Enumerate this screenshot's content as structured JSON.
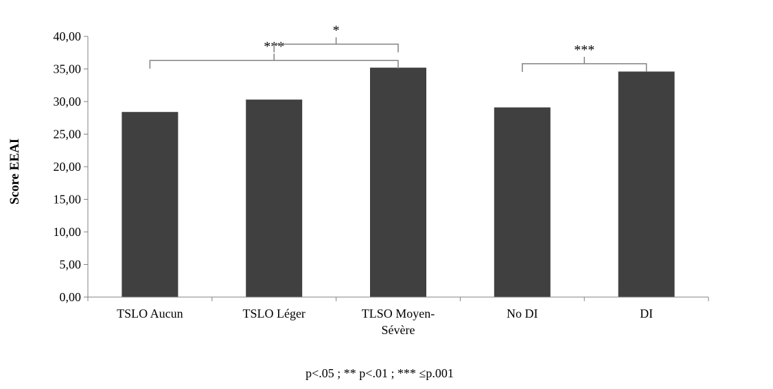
{
  "chart_data": {
    "type": "bar",
    "categories": [
      "TSLO Aucun",
      "TSLO Léger",
      "TLSO Moyen-Sévère",
      "No DI",
      "DI"
    ],
    "category_lines": [
      [
        "TSLO Aucun"
      ],
      [
        "TSLO Léger"
      ],
      [
        "TLSO Moyen-",
        "Sévère"
      ],
      [
        "No DI"
      ],
      [
        "DI"
      ]
    ],
    "values": [
      28.4,
      30.3,
      35.2,
      29.1,
      34.6
    ],
    "ylabel": "Score EEAI",
    "xlabel": "",
    "title": "",
    "ylim": [
      0,
      40
    ],
    "yticks": [
      "0,00",
      "5,00",
      "10,00",
      "15,00",
      "20,00",
      "25,00",
      "30,00",
      "35,00",
      "40,00"
    ],
    "ytick_step": 5,
    "grid": false,
    "bar_color": "#404040",
    "significance": [
      {
        "from": 0,
        "to": 2,
        "label": "***",
        "level": 36.3
      },
      {
        "from": 1,
        "to": 2,
        "label": "*",
        "level": 38.8
      },
      {
        "from": 3,
        "to": 4,
        "label": "***",
        "level": 35.8
      }
    ],
    "footnote": "p<.05 ; ** p<.01 ; *** ≤p.001"
  }
}
